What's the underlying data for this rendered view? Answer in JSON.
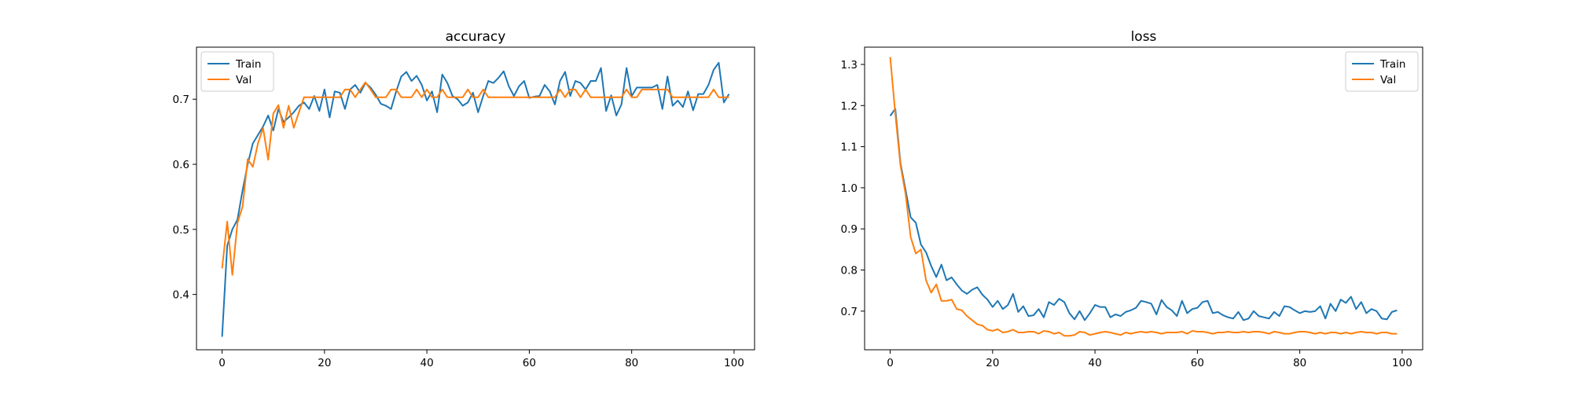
{
  "chart_data": [
    {
      "type": "line",
      "title": "accuracy",
      "xlabel": "",
      "ylabel": "",
      "xlim": [
        -5,
        104
      ],
      "ylim": [
        0.315,
        0.78
      ],
      "xticks": [
        0,
        20,
        40,
        60,
        80,
        100
      ],
      "yticks": [
        0.4,
        0.5,
        0.6,
        0.7
      ],
      "ytick_decimals": 1,
      "grid": false,
      "legend": "upper-left",
      "series": [
        {
          "name": "Train",
          "color": "#1f77b4",
          "values": [
            0.335,
            0.475,
            0.5,
            0.515,
            0.56,
            0.6,
            0.632,
            0.645,
            0.658,
            0.675,
            0.652,
            0.685,
            0.665,
            0.672,
            0.68,
            0.69,
            0.695,
            0.685,
            0.705,
            0.682,
            0.715,
            0.672,
            0.712,
            0.71,
            0.685,
            0.715,
            0.722,
            0.71,
            0.725,
            0.718,
            0.707,
            0.693,
            0.69,
            0.685,
            0.712,
            0.735,
            0.742,
            0.728,
            0.736,
            0.722,
            0.698,
            0.712,
            0.68,
            0.738,
            0.725,
            0.705,
            0.7,
            0.69,
            0.695,
            0.71,
            0.68,
            0.705,
            0.728,
            0.725,
            0.733,
            0.743,
            0.72,
            0.705,
            0.72,
            0.728,
            0.702,
            0.704,
            0.705,
            0.722,
            0.712,
            0.692,
            0.728,
            0.742,
            0.705,
            0.728,
            0.725,
            0.715,
            0.728,
            0.728,
            0.748,
            0.682,
            0.706,
            0.675,
            0.692,
            0.748,
            0.705,
            0.718,
            0.718,
            0.718,
            0.718,
            0.722,
            0.685,
            0.735,
            0.69,
            0.698,
            0.688,
            0.712,
            0.683,
            0.708,
            0.708,
            0.722,
            0.745,
            0.756,
            0.695,
            0.708
          ]
        },
        {
          "name": "Val",
          "color": "#ff7f0e",
          "values": [
            0.44,
            0.512,
            0.43,
            0.51,
            0.535,
            0.608,
            0.596,
            0.632,
            0.656,
            0.607,
            0.678,
            0.691,
            0.656,
            0.69,
            0.656,
            0.68,
            0.703,
            0.703,
            0.703,
            0.703,
            0.703,
            0.703,
            0.703,
            0.703,
            0.715,
            0.715,
            0.703,
            0.715,
            0.726,
            0.715,
            0.703,
            0.703,
            0.703,
            0.715,
            0.715,
            0.703,
            0.703,
            0.703,
            0.715,
            0.703,
            0.715,
            0.703,
            0.703,
            0.715,
            0.703,
            0.703,
            0.703,
            0.703,
            0.715,
            0.703,
            0.703,
            0.715,
            0.703,
            0.703,
            0.703,
            0.703,
            0.703,
            0.703,
            0.703,
            0.703,
            0.703,
            0.703,
            0.703,
            0.703,
            0.703,
            0.703,
            0.715,
            0.703,
            0.715,
            0.715,
            0.703,
            0.715,
            0.703,
            0.703,
            0.703,
            0.703,
            0.703,
            0.703,
            0.703,
            0.715,
            0.703,
            0.703,
            0.715,
            0.715,
            0.715,
            0.715,
            0.715,
            0.715,
            0.703,
            0.703,
            0.703,
            0.703,
            0.703,
            0.703,
            0.703,
            0.703,
            0.715,
            0.703,
            0.703,
            0.703
          ]
        }
      ]
    },
    {
      "type": "line",
      "title": "loss",
      "xlabel": "",
      "ylabel": "",
      "xlim": [
        -5,
        104
      ],
      "ylim": [
        0.606,
        1.342
      ],
      "xticks": [
        0,
        20,
        40,
        60,
        80,
        100
      ],
      "yticks": [
        0.7,
        0.8,
        0.9,
        1.0,
        1.1,
        1.2,
        1.3
      ],
      "ytick_decimals": 1,
      "grid": false,
      "legend": "upper-right",
      "series": [
        {
          "name": "Train",
          "color": "#1f77b4",
          "values": [
            1.175,
            1.192,
            1.06,
            0.995,
            0.928,
            0.915,
            0.862,
            0.843,
            0.81,
            0.783,
            0.813,
            0.775,
            0.782,
            0.765,
            0.75,
            0.742,
            0.752,
            0.758,
            0.74,
            0.728,
            0.71,
            0.725,
            0.705,
            0.715,
            0.742,
            0.698,
            0.712,
            0.688,
            0.69,
            0.705,
            0.685,
            0.722,
            0.715,
            0.73,
            0.722,
            0.695,
            0.68,
            0.7,
            0.678,
            0.695,
            0.715,
            0.71,
            0.71,
            0.685,
            0.692,
            0.688,
            0.698,
            0.702,
            0.708,
            0.725,
            0.722,
            0.718,
            0.692,
            0.727,
            0.71,
            0.702,
            0.688,
            0.725,
            0.695,
            0.705,
            0.708,
            0.722,
            0.725,
            0.695,
            0.698,
            0.69,
            0.685,
            0.682,
            0.698,
            0.678,
            0.682,
            0.7,
            0.688,
            0.685,
            0.682,
            0.698,
            0.688,
            0.712,
            0.71,
            0.702,
            0.695,
            0.7,
            0.698,
            0.7,
            0.712,
            0.682,
            0.718,
            0.7,
            0.728,
            0.72,
            0.735,
            0.705,
            0.722,
            0.695,
            0.705,
            0.7,
            0.682,
            0.68,
            0.698,
            0.702
          ]
        },
        {
          "name": "Val",
          "color": "#ff7f0e",
          "values": [
            1.318,
            1.18,
            1.055,
            0.985,
            0.88,
            0.84,
            0.85,
            0.775,
            0.745,
            0.765,
            0.725,
            0.725,
            0.728,
            0.705,
            0.702,
            0.688,
            0.678,
            0.668,
            0.665,
            0.655,
            0.652,
            0.656,
            0.648,
            0.65,
            0.655,
            0.648,
            0.648,
            0.65,
            0.65,
            0.645,
            0.652,
            0.65,
            0.645,
            0.648,
            0.64,
            0.64,
            0.642,
            0.65,
            0.648,
            0.642,
            0.645,
            0.648,
            0.65,
            0.648,
            0.645,
            0.642,
            0.648,
            0.645,
            0.648,
            0.65,
            0.648,
            0.65,
            0.648,
            0.645,
            0.648,
            0.648,
            0.648,
            0.65,
            0.645,
            0.652,
            0.65,
            0.65,
            0.648,
            0.645,
            0.648,
            0.648,
            0.65,
            0.648,
            0.648,
            0.65,
            0.648,
            0.65,
            0.65,
            0.648,
            0.645,
            0.65,
            0.648,
            0.645,
            0.645,
            0.648,
            0.65,
            0.65,
            0.648,
            0.645,
            0.648,
            0.645,
            0.648,
            0.648,
            0.645,
            0.648,
            0.645,
            0.648,
            0.65,
            0.648,
            0.648,
            0.645,
            0.648,
            0.648,
            0.645,
            0.645
          ]
        }
      ]
    }
  ]
}
